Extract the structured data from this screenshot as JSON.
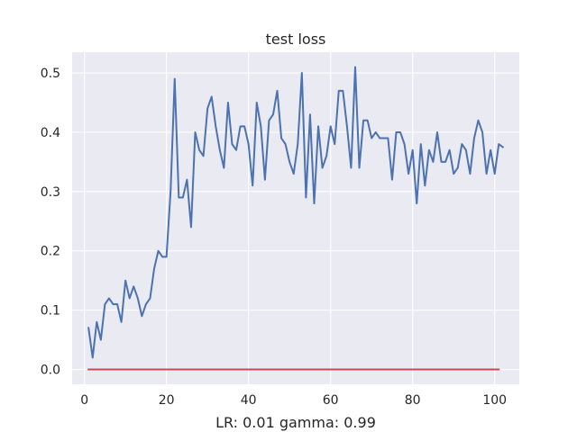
{
  "chart_data": {
    "type": "line",
    "title": "test loss",
    "xlabel": "LR: 0.01 gamma: 0.99",
    "ylabel": "",
    "xlim": [
      -3,
      106
    ],
    "ylim": [
      -0.025,
      0.535
    ],
    "xticks": [
      0,
      20,
      40,
      60,
      80,
      100
    ],
    "yticks": [
      0.0,
      0.1,
      0.2,
      0.3,
      0.4,
      0.5
    ],
    "grid": true,
    "colors": {
      "background": "#eaeaf2",
      "grid": "#ffffff"
    },
    "series": [
      {
        "color": "#4c72b0",
        "x": [
          1,
          2,
          3,
          4,
          5,
          6,
          7,
          8,
          9,
          10,
          11,
          12,
          13,
          14,
          15,
          16,
          17,
          18,
          19,
          20,
          21,
          22,
          23,
          24,
          25,
          26,
          27,
          28,
          29,
          30,
          31,
          32,
          33,
          34,
          35,
          36,
          37,
          38,
          39,
          40,
          41,
          42,
          43,
          44,
          45,
          46,
          47,
          48,
          49,
          50,
          51,
          52,
          53,
          54,
          55,
          56,
          57,
          58,
          59,
          60,
          61,
          62,
          63,
          64,
          65,
          66,
          67,
          68,
          69,
          70,
          71,
          72,
          73,
          74,
          75,
          76,
          77,
          78,
          79,
          80,
          81,
          82,
          83,
          84,
          85,
          86,
          87,
          88,
          89,
          90,
          91,
          92,
          93,
          94,
          95,
          96,
          97,
          98,
          99,
          100,
          101,
          102
        ],
        "values": [
          0.07,
          0.02,
          0.08,
          0.05,
          0.11,
          0.12,
          0.11,
          0.11,
          0.08,
          0.15,
          0.12,
          0.14,
          0.12,
          0.09,
          0.11,
          0.12,
          0.17,
          0.2,
          0.19,
          0.19,
          0.3,
          0.49,
          0.29,
          0.29,
          0.32,
          0.24,
          0.4,
          0.37,
          0.36,
          0.44,
          0.46,
          0.41,
          0.37,
          0.34,
          0.45,
          0.38,
          0.37,
          0.41,
          0.41,
          0.38,
          0.31,
          0.45,
          0.41,
          0.32,
          0.42,
          0.43,
          0.47,
          0.39,
          0.38,
          0.35,
          0.33,
          0.38,
          0.5,
          0.29,
          0.43,
          0.28,
          0.41,
          0.34,
          0.36,
          0.41,
          0.38,
          0.47,
          0.47,
          0.41,
          0.34,
          0.51,
          0.34,
          0.42,
          0.42,
          0.39,
          0.4,
          0.39,
          0.39,
          0.39,
          0.32,
          0.4,
          0.4,
          0.38,
          0.33,
          0.37,
          0.28,
          0.38,
          0.31,
          0.37,
          0.35,
          0.4,
          0.35,
          0.35,
          0.37,
          0.33,
          0.34,
          0.38,
          0.37,
          0.33,
          0.39,
          0.42,
          0.4,
          0.33,
          0.37,
          0.33,
          0.38,
          0.375
        ]
      },
      {
        "color": "#c44e52",
        "x": [
          1,
          101
        ],
        "values": [
          0.0,
          0.0
        ]
      }
    ]
  }
}
